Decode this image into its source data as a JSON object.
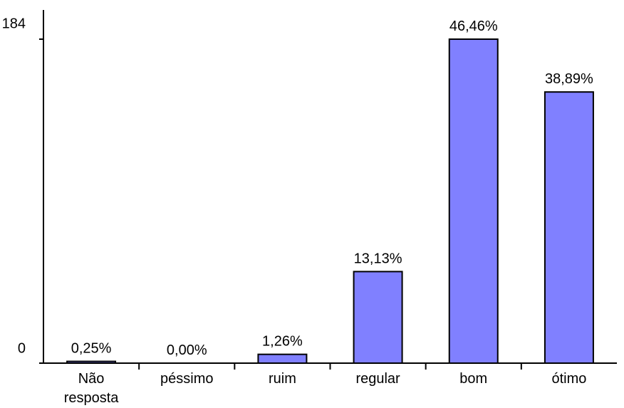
{
  "chart_data": {
    "type": "bar",
    "categories": [
      [
        "Não",
        "resposta"
      ],
      [
        "péssimo"
      ],
      [
        "ruim"
      ],
      [
        "regular"
      ],
      [
        "bom"
      ],
      [
        "ótimo"
      ]
    ],
    "values": [
      1,
      0,
      5,
      52,
      184,
      154
    ],
    "data_labels": [
      "0,25%",
      "0,00%",
      "1,26%",
      "13,13%",
      "46,46%",
      "38,89%"
    ],
    "ylim": [
      0,
      184
    ],
    "y_ticks": [
      {
        "value": 0,
        "label": "0"
      },
      {
        "value": 184,
        "label": "184"
      }
    ],
    "bar_color": "#8080ff",
    "bar_stroke": "#000000",
    "grid": false,
    "legend": "none"
  }
}
